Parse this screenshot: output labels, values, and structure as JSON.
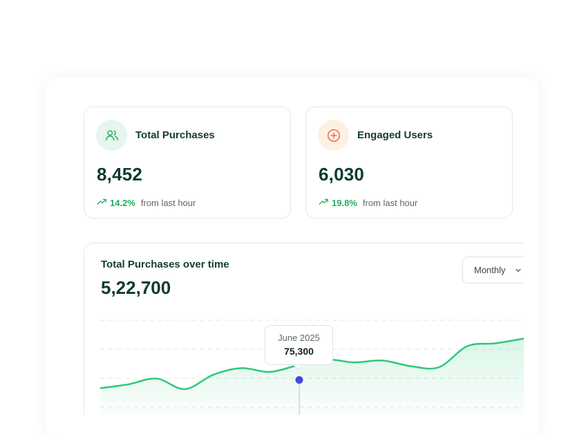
{
  "cards": [
    {
      "title": "Total Purchases",
      "value": "8,452",
      "delta_pct": "14.2%",
      "delta_text": "from last hour",
      "icon": "users-icon",
      "icon_color": "#22b05c"
    },
    {
      "title": "Engaged Users",
      "value": "6,030",
      "delta_pct": "19.8%",
      "delta_text": "from last hour",
      "icon": "plus-circle-icon",
      "icon_color": "#f06a4d"
    }
  ],
  "chart": {
    "title": "Total Purchases over time",
    "total": "5,22,700",
    "period_select": "Monthly",
    "tooltip": {
      "date": "June 2025",
      "value": "75,300"
    },
    "accent_color": "#2fc77a",
    "marker_color": "#4a45e0"
  },
  "chart_data": {
    "type": "area",
    "title": "Total Purchases over time",
    "x_points": 16,
    "values": [
      28,
      32,
      38,
      27,
      42,
      49,
      45,
      52,
      58,
      55,
      57,
      51,
      50,
      72,
      75,
      80
    ],
    "highlight": {
      "label": "June 2025",
      "value": 75300
    },
    "grid": true
  }
}
